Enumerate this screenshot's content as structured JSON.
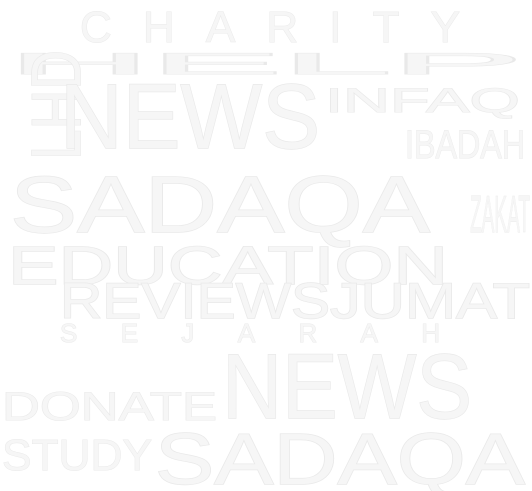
{
  "word_cloud": {
    "word_color": "#f6f6f6",
    "outline_color": "#e9e9e9",
    "background": "#ffffff",
    "words": {
      "charity": "CHARITY",
      "lhd": "LHD",
      "news_1": "NEWS",
      "ibadah": "IBADAH",
      "sadaqa_1": "SADAQA",
      "education": "EDUCATION",
      "reviews": "REVIEWS",
      "jumat": "JUMAT",
      "sejarah": "SEJARAH",
      "news_2": "NEWS",
      "donate": "DONATE",
      "study": "STUDY",
      "sadaqa_2": "SADAQA",
      "help": "HELP",
      "infaq": "INFAQ",
      "zakat": "ZAKAT"
    }
  }
}
